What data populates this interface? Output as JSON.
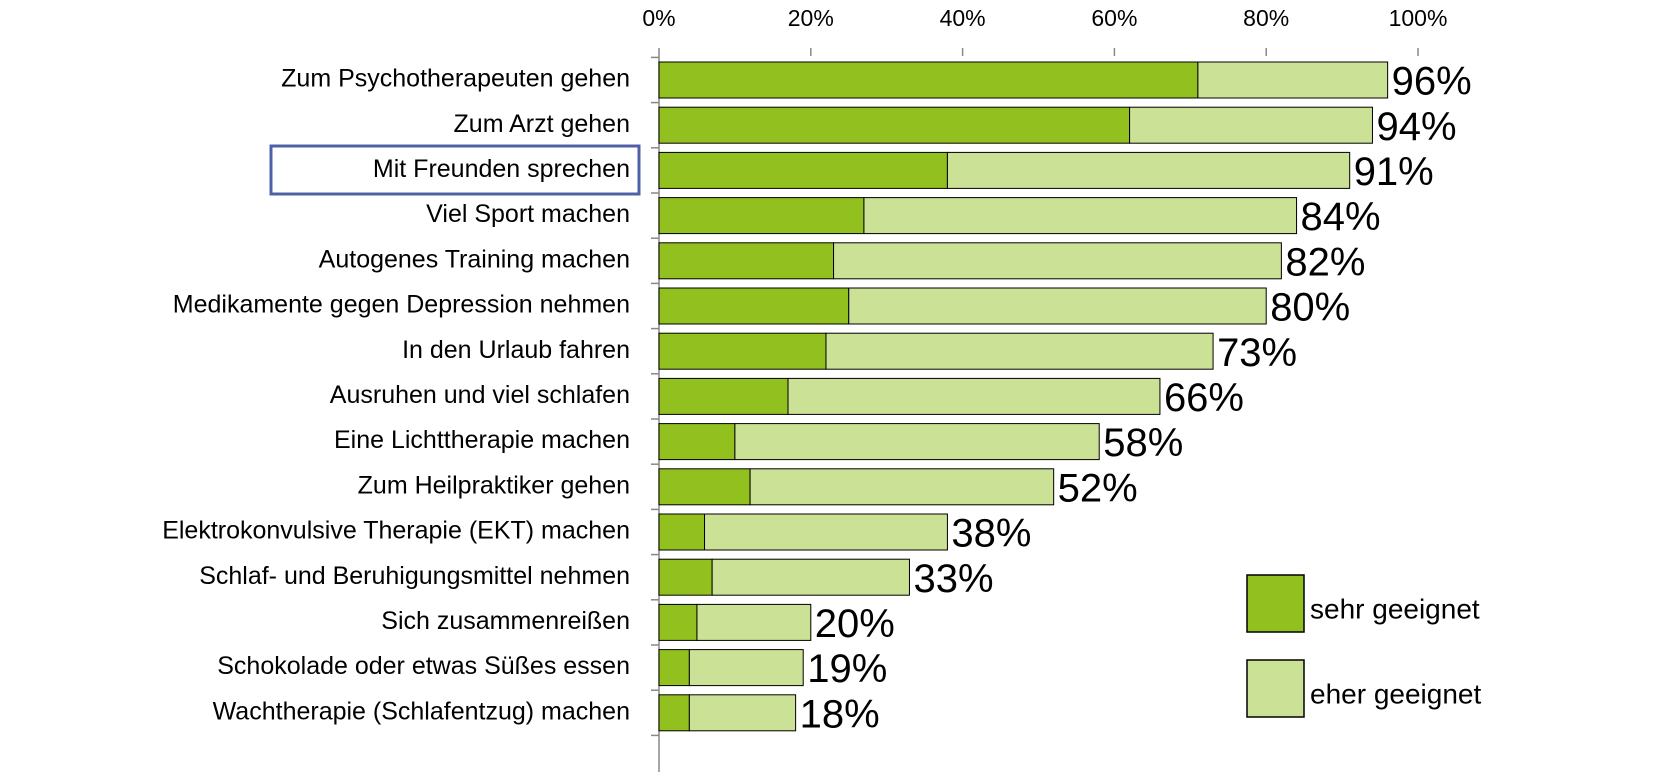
{
  "chart_data": {
    "type": "stacked_barh",
    "categories": [
      "Zum Psychotherapeuten gehen",
      "Zum Arzt gehen",
      "Mit Freunden sprechen",
      "Viel Sport machen",
      "Autogenes Training machen",
      "Medikamente gegen Depression nehmen",
      "In den Urlaub fahren",
      "Ausruhen und viel schlafen",
      "Eine Lichttherapie machen",
      "Zum Heilpraktiker gehen",
      "Elektrokonvulsive Therapie (EKT) machen",
      "Schlaf- und Beruhigungsmittel nehmen",
      "Sich zusammenreißen",
      "Schokolade oder etwas Süßes essen",
      "Wachtherapie (Schlafentzug) machen"
    ],
    "series": [
      {
        "name": "sehr geeignet",
        "color": "#92c01f",
        "values": [
          71,
          62,
          38,
          27,
          23,
          25,
          22,
          17,
          10,
          12,
          6,
          7,
          5,
          4,
          4
        ]
      },
      {
        "name": "eher geeignet",
        "color": "#cbe196",
        "values": [
          25,
          32,
          53,
          57,
          59,
          55,
          51,
          49,
          48,
          40,
          32,
          26,
          15,
          15,
          14
        ]
      }
    ],
    "total_labels": [
      "96%",
      "94%",
      "91%",
      "84%",
      "82%",
      "80%",
      "73%",
      "66%",
      "58%",
      "52%",
      "38%",
      "33%",
      "20%",
      "19%",
      "18%"
    ],
    "xlim": [
      0,
      100
    ],
    "xticks": [
      {
        "value": 0,
        "label": "0%"
      },
      {
        "value": 20,
        "label": "20%"
      },
      {
        "value": 40,
        "label": "40%"
      },
      {
        "value": 60,
        "label": "60%"
      },
      {
        "value": 80,
        "label": "80%"
      },
      {
        "value": 100,
        "label": "100%"
      }
    ],
    "legend": "bottom-right"
  }
}
